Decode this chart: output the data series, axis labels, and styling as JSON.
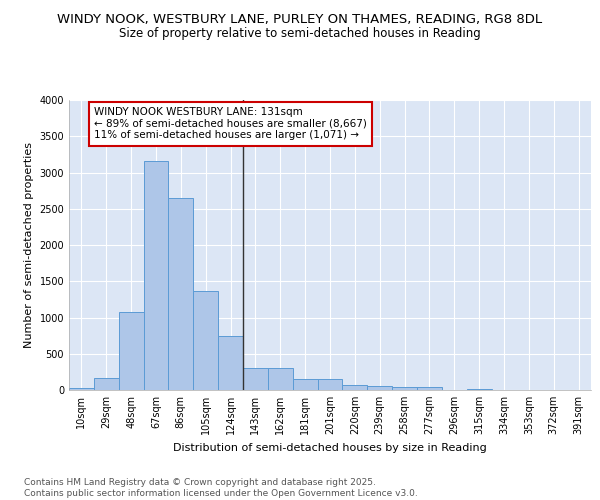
{
  "title_line1": "WINDY NOOK, WESTBURY LANE, PURLEY ON THAMES, READING, RG8 8DL",
  "title_line2": "Size of property relative to semi-detached houses in Reading",
  "xlabel": "Distribution of semi-detached houses by size in Reading",
  "ylabel": "Number of semi-detached properties",
  "categories": [
    "10sqm",
    "29sqm",
    "48sqm",
    "67sqm",
    "86sqm",
    "105sqm",
    "124sqm",
    "143sqm",
    "162sqm",
    "181sqm",
    "201sqm",
    "220sqm",
    "239sqm",
    "258sqm",
    "277sqm",
    "296sqm",
    "315sqm",
    "334sqm",
    "353sqm",
    "372sqm",
    "391sqm"
  ],
  "values": [
    25,
    170,
    1080,
    3160,
    2650,
    1360,
    750,
    310,
    305,
    155,
    150,
    75,
    50,
    45,
    45,
    0,
    10,
    0,
    0,
    0,
    0
  ],
  "bar_color": "#aec6e8",
  "bar_edge_color": "#5b9bd5",
  "vline_pos": 6.5,
  "vline_color": "#333333",
  "annotation_text": "WINDY NOOK WESTBURY LANE: 131sqm\n← 89% of semi-detached houses are smaller (8,667)\n11% of semi-detached houses are larger (1,071) →",
  "annotation_box_color": "#ffffff",
  "annotation_box_edge": "#cc0000",
  "ylim": [
    0,
    4000
  ],
  "yticks": [
    0,
    500,
    1000,
    1500,
    2000,
    2500,
    3000,
    3500,
    4000
  ],
  "background_color": "#dce6f5",
  "grid_color": "#ffffff",
  "footer_text": "Contains HM Land Registry data © Crown copyright and database right 2025.\nContains public sector information licensed under the Open Government Licence v3.0.",
  "title_fontsize": 9.5,
  "subtitle_fontsize": 8.5,
  "axis_label_fontsize": 8,
  "tick_fontsize": 7,
  "annotation_fontsize": 7.5,
  "footer_fontsize": 6.5
}
